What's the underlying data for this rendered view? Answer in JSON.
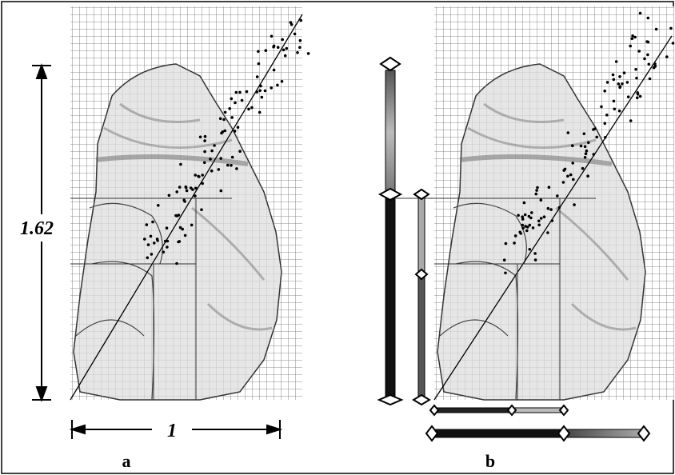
{
  "panels": [
    {
      "label": "a",
      "height_label": "1.62",
      "width_label": "1"
    },
    {
      "label": "b"
    }
  ]
}
